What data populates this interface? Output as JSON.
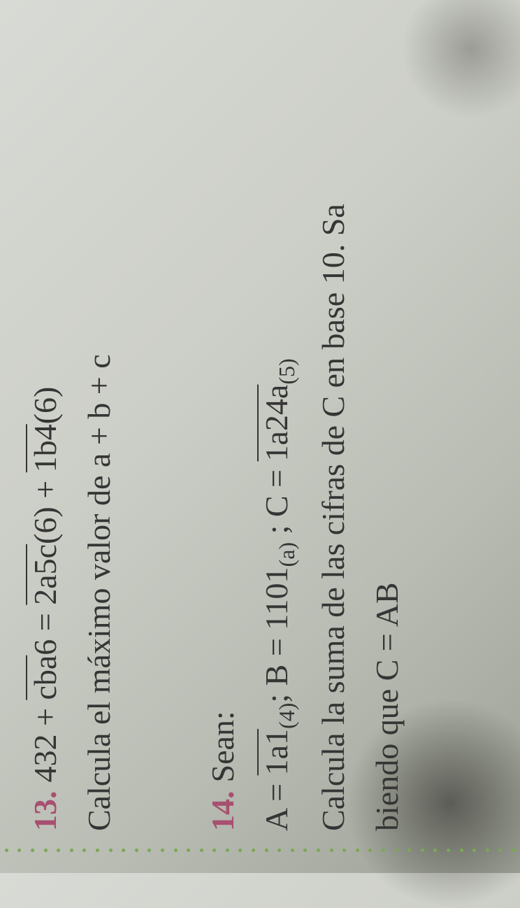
{
  "problems": {
    "p13": {
      "number": "13.",
      "equation_parts": {
        "part1": "432 + ",
        "part2_overline": "cba",
        "part3": "6 = ",
        "part4_overline": "2a5c",
        "part5": "(6) + ",
        "part6_overline": "1b4",
        "part7": "(6)"
      },
      "instruction": "Calcula el máximo valor de a + b + c"
    },
    "p14": {
      "number": "14.",
      "title": "Sean:",
      "equation_parts": {
        "a_label": "A = ",
        "a_overline": "1a1",
        "a_sub": "(4)",
        "b_label": "; B = 1101",
        "b_sub": "(a)",
        "c_label": " ; C = ",
        "c_overline": "1a24a",
        "c_sub": "(5)"
      },
      "instruction1": "Calcula la suma de las cifras de C en base 10. Sa",
      "instruction2": "biendo que C = AB"
    }
  },
  "colors": {
    "text": "#353535",
    "problem_number": "#a85070",
    "dots": "#7aa854",
    "background": "#cccfc7"
  },
  "typography": {
    "main_fontsize": 46,
    "sub_fontsize": 32
  }
}
